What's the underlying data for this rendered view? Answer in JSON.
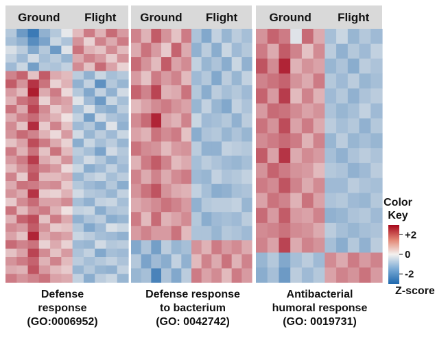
{
  "colors": {
    "low": "#1f68ad",
    "mid": "#f4f1ef",
    "high": "#a5051a",
    "header_band": "#d9d9d9"
  },
  "color_key": {
    "title_lines": [
      "Color",
      "Key"
    ],
    "ticks": [
      "+2",
      "0",
      "-2"
    ],
    "tick_values": [
      2,
      0,
      -2
    ],
    "range": [
      -3,
      3
    ],
    "zscore_label": "Z-score"
  },
  "chart_data": [
    {
      "type": "heatmap",
      "title_lines": [
        "Defense",
        "response",
        "(GO:0006952)"
      ],
      "groups": [
        "Ground",
        "Flight"
      ],
      "z": [
        [
          -0.9,
          -1.9,
          -2.6,
          -1.4,
          -0.9,
          -0.2,
          0.7,
          1.5,
          0.8,
          1.7,
          1.1
        ],
        [
          -1.1,
          -1.4,
          -2.2,
          -1.7,
          -0.6,
          -1.0,
          1.2,
          0.4,
          1.4,
          0.9,
          1.5
        ],
        [
          -0.4,
          -0.8,
          -1.6,
          -0.9,
          -1.9,
          -0.3,
          1.6,
          0.8,
          0.6,
          1.3,
          0.7
        ],
        [
          -0.7,
          -1.2,
          -0.5,
          -1.1,
          -0.8,
          -1.3,
          0.9,
          1.4,
          1.1,
          0.5,
          1.2
        ],
        [
          -1.2,
          -0.6,
          -1.8,
          -0.9,
          -1.0,
          -0.7,
          1.3,
          0.6,
          1.7,
          1.0,
          0.4
        ],
        [
          1.4,
          1.8,
          0.6,
          1.9,
          0.9,
          0.7,
          -0.8,
          -1.4,
          -0.6,
          -1.1,
          -0.9
        ],
        [
          1.9,
          1.2,
          2.4,
          1.6,
          0.4,
          0.8,
          -1.4,
          -0.7,
          -2.1,
          -0.9,
          -1.3
        ],
        [
          1.1,
          0.7,
          2.7,
          0.9,
          1.5,
          0.3,
          -0.9,
          -1.6,
          -0.7,
          -1.4,
          -0.5
        ],
        [
          0.8,
          1.6,
          1.9,
          0.4,
          1.2,
          1.0,
          -0.3,
          -1.2,
          -1.9,
          -0.6,
          -1.1
        ],
        [
          1.6,
          0.9,
          2.2,
          1.3,
          0.5,
          0.9,
          -1.1,
          -0.4,
          -1.3,
          -1.5,
          -0.8
        ],
        [
          0.9,
          1.4,
          1.7,
          1.1,
          0.8,
          0.2,
          -0.7,
          -1.8,
          -0.5,
          -1.0,
          -1.2
        ],
        [
          1.3,
          0.6,
          2.5,
          0.5,
          1.4,
          0.6,
          -1.2,
          -0.9,
          -1.6,
          -0.3,
          -1.4
        ],
        [
          1.2,
          1.7,
          1.4,
          0.8,
          0.3,
          1.1,
          -0.5,
          -1.3,
          -0.8,
          -1.2,
          -0.6
        ],
        [
          0.6,
          1.0,
          2.1,
          1.5,
          0.9,
          0.4,
          -1.5,
          -0.6,
          -1.1,
          -0.8,
          -1.3
        ],
        [
          1.5,
          0.8,
          1.6,
          0.6,
          1.6,
          0.7,
          -0.8,
          -1.1,
          -1.7,
          -0.5,
          -0.9
        ],
        [
          1.1,
          1.5,
          2.3,
          0.9,
          0.6,
          1.2,
          -1.0,
          -0.5,
          -0.9,
          -1.4,
          -1.0
        ],
        [
          0.7,
          1.2,
          1.8,
          1.4,
          1.1,
          0.3,
          -0.6,
          -1.5,
          -1.2,
          -0.7,
          -1.2
        ],
        [
          1.4,
          0.5,
          2.0,
          0.7,
          0.7,
          0.9,
          -1.3,
          -0.8,
          -0.6,
          -1.1,
          -0.8
        ],
        [
          0.9,
          1.6,
          1.5,
          1.2,
          1.3,
          0.5,
          -0.9,
          -1.2,
          -1.4,
          -0.9,
          -1.5
        ],
        [
          1.2,
          0.9,
          2.4,
          0.5,
          0.4,
          0.8,
          -0.5,
          -0.9,
          -1.0,
          -1.3,
          -0.7
        ],
        [
          0.5,
          1.3,
          1.7,
          1.0,
          1.0,
          1.3,
          -1.1,
          -1.4,
          -0.7,
          -0.6,
          -1.1
        ],
        [
          1.6,
          0.7,
          1.3,
          1.5,
          0.8,
          0.2,
          -0.7,
          -0.6,
          -1.5,
          -1.0,
          -0.9
        ],
        [
          0.8,
          1.8,
          2.1,
          0.6,
          1.5,
          0.9,
          -1.4,
          -1.0,
          -0.8,
          -1.5,
          -1.3
        ],
        [
          1.3,
          1.1,
          1.9,
          1.2,
          0.5,
          0.6,
          -0.9,
          -1.6,
          -1.2,
          -0.4,
          -0.6
        ],
        [
          1.0,
          0.6,
          2.6,
          0.9,
          1.2,
          1.0,
          -0.6,
          -0.8,
          -1.1,
          -1.2,
          -1.4
        ],
        [
          1.7,
          1.4,
          1.6,
          0.4,
          0.9,
          0.4,
          -1.2,
          -1.3,
          -0.5,
          -0.9,
          -0.8
        ],
        [
          0.6,
          1.0,
          2.2,
          1.3,
          0.6,
          1.1,
          -1.0,
          -0.7,
          -1.6,
          -1.1,
          -1.2
        ],
        [
          1.2,
          1.5,
          1.8,
          0.8,
          1.4,
          0.7,
          -0.8,
          -1.1,
          -0.9,
          -0.7,
          -1.0
        ],
        [
          0.9,
          0.8,
          2.0,
          1.1,
          0.7,
          0.5,
          -1.3,
          -0.9,
          -1.3,
          -1.4,
          -0.7
        ],
        [
          1.5,
          1.2,
          1.4,
          1.6,
          1.0,
          0.9,
          -0.7,
          -1.5,
          -0.8,
          -0.6,
          -1.3
        ]
      ]
    },
    {
      "type": "heatmap",
      "title_lines": [
        "Defense response",
        "to bacterium",
        "(GO: 0042742)"
      ],
      "groups": [
        "Ground",
        "Flight"
      ],
      "z": [
        [
          1.4,
          0.8,
          1.9,
          1.2,
          0.6,
          1.5,
          -1.0,
          -1.6,
          -0.7,
          -1.3,
          -0.8,
          -1.1
        ],
        [
          0.9,
          1.6,
          1.1,
          0.5,
          1.8,
          0.9,
          -1.4,
          -0.8,
          -1.5,
          -0.6,
          -1.2,
          -0.9
        ],
        [
          1.7,
          1.2,
          0.7,
          1.9,
          1.0,
          1.3,
          -0.7,
          -1.3,
          -1.0,
          -1.5,
          -0.6,
          -1.4
        ],
        [
          1.1,
          0.6,
          1.5,
          1.1,
          1.4,
          0.7,
          -1.2,
          -0.9,
          -1.6,
          -0.8,
          -1.3,
          -0.7
        ],
        [
          1.8,
          1.4,
          2.2,
          0.8,
          0.9,
          1.6,
          -0.9,
          -1.5,
          -0.8,
          -1.1,
          -0.9,
          -1.2
        ],
        [
          0.7,
          1.0,
          1.3,
          1.5,
          1.2,
          1.0,
          -1.3,
          -0.7,
          -1.3,
          -1.6,
          -0.7,
          -1.0
        ],
        [
          1.3,
          1.7,
          2.6,
          1.0,
          0.8,
          1.4,
          -0.6,
          -1.2,
          -1.1,
          -0.9,
          -1.4,
          -0.8
        ],
        [
          1.0,
          0.8,
          1.6,
          1.3,
          1.5,
          0.6,
          -1.5,
          -1.0,
          -0.9,
          -1.3,
          -1.0,
          -1.3
        ],
        [
          1.6,
          1.3,
          1.2,
          0.7,
          1.1,
          1.2,
          -0.8,
          -1.4,
          -1.4,
          -0.7,
          -0.8,
          -0.9
        ],
        [
          0.8,
          1.5,
          1.9,
          1.4,
          0.7,
          0.9,
          -1.1,
          -0.8,
          -1.0,
          -1.2,
          -1.3,
          -1.1
        ],
        [
          1.4,
          0.9,
          1.4,
          0.9,
          1.3,
          1.5,
          -1.2,
          -1.3,
          -0.7,
          -1.0,
          -0.9,
          -0.7
        ],
        [
          1.2,
          1.6,
          2.0,
          1.2,
          0.9,
          0.8,
          -0.7,
          -1.1,
          -1.5,
          -1.4,
          -1.1,
          -1.0
        ],
        [
          0.9,
          1.1,
          1.3,
          1.6,
          1.4,
          1.1,
          -1.4,
          -0.9,
          -0.8,
          -0.8,
          -0.7,
          -1.3
        ],
        [
          1.5,
          0.7,
          1.7,
          0.8,
          1.0,
          1.3,
          -0.9,
          -1.5,
          -1.2,
          -1.1,
          -1.2,
          -0.8
        ],
        [
          1.1,
          1.4,
          1.1,
          1.1,
          1.6,
          0.7,
          -1.0,
          -1.0,
          -1.3,
          -0.9,
          -1.0,
          -1.2
        ],
        [
          -1.6,
          -1.0,
          -1.8,
          -0.8,
          -1.3,
          -1.1,
          1.2,
          0.8,
          1.5,
          1.1,
          1.3,
          0.9
        ],
        [
          -0.9,
          -1.7,
          -1.2,
          -1.5,
          -0.7,
          -1.4,
          0.7,
          1.4,
          0.9,
          1.6,
          0.8,
          1.4
        ],
        [
          -1.3,
          -1.1,
          -2.4,
          -1.0,
          -1.6,
          -0.8,
          1.5,
          1.0,
          1.3,
          0.7,
          1.5,
          1.1
        ]
      ]
    },
    {
      "type": "heatmap",
      "title_lines": [
        "Antibacterial",
        "humoral response",
        "(GO: 0019731)"
      ],
      "groups": [
        "Ground",
        "Flight"
      ],
      "z": [
        [
          1.2,
          1.8,
          1.5,
          -0.3,
          1.7,
          0.9,
          -1.1,
          -0.6,
          -1.3,
          -0.9,
          -1.2
        ],
        [
          1.5,
          0.9,
          1.9,
          1.4,
          0.6,
          1.3,
          -0.8,
          -1.4,
          -0.9,
          -1.2,
          -0.7
        ],
        [
          2.0,
          1.3,
          2.6,
          0.8,
          1.2,
          1.0,
          -1.3,
          -1.0,
          -1.5,
          -0.8,
          -1.0
        ],
        [
          1.4,
          1.6,
          1.8,
          1.2,
          0.9,
          1.5,
          -0.9,
          -1.2,
          -0.8,
          -1.3,
          -1.1
        ],
        [
          1.8,
          1.1,
          2.3,
          0.7,
          1.4,
          0.8,
          -1.2,
          -0.9,
          -1.4,
          -1.0,
          -0.8
        ],
        [
          1.1,
          1.7,
          1.6,
          1.3,
          1.0,
          1.2,
          -1.0,
          -1.3,
          -1.1,
          -0.7,
          -1.2
        ],
        [
          1.6,
          1.2,
          2.1,
          1.0,
          1.5,
          0.9,
          -0.8,
          -1.1,
          -0.9,
          -1.4,
          -0.9
        ],
        [
          1.3,
          1.5,
          1.7,
          1.5,
          0.8,
          1.4,
          -1.3,
          -0.8,
          -1.3,
          -1.1,
          -1.3
        ],
        [
          1.9,
          1.0,
          2.4,
          0.9,
          1.3,
          1.1,
          -1.1,
          -1.4,
          -1.0,
          -0.8,
          -1.0
        ],
        [
          1.2,
          1.8,
          1.5,
          1.2,
          1.1,
          0.7,
          -0.9,
          -1.0,
          -1.4,
          -1.2,
          -0.8
        ],
        [
          1.5,
          1.3,
          2.0,
          1.4,
          0.9,
          1.3,
          -1.2,
          -1.2,
          -0.8,
          -1.0,
          -1.1
        ],
        [
          1.0,
          1.6,
          1.4,
          0.8,
          1.6,
          1.0,
          -1.0,
          -0.9,
          -1.2,
          -1.3,
          -0.9
        ],
        [
          1.7,
          1.1,
          1.9,
          1.1,
          1.0,
          1.4,
          -1.4,
          -1.3,
          -1.0,
          -0.9,
          -1.2
        ],
        [
          1.3,
          1.4,
          1.6,
          1.3,
          1.2,
          0.9,
          -0.8,
          -1.1,
          -1.3,
          -1.1,
          -1.0
        ],
        [
          1.4,
          1.0,
          2.2,
          0.9,
          1.4,
          1.2,
          -1.1,
          -1.5,
          -0.9,
          -1.4,
          -0.8
        ],
        [
          -1.3,
          -0.9,
          -1.6,
          -1.1,
          -0.8,
          -1.2,
          1.3,
          0.9,
          1.5,
          1.1,
          1.4
        ],
        [
          -1.5,
          -1.1,
          -1.9,
          -0.8,
          -1.2,
          -0.9,
          1.0,
          1.4,
          1.2,
          1.6,
          1.1
        ]
      ]
    }
  ]
}
